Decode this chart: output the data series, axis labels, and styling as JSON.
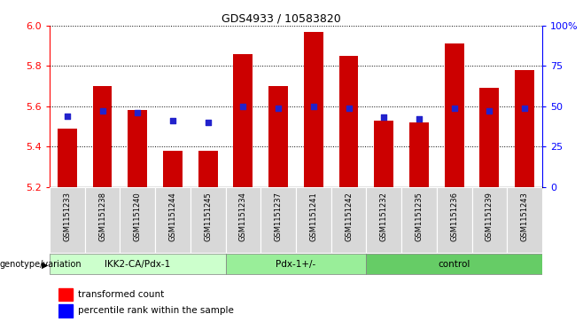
{
  "title": "GDS4933 / 10583820",
  "samples": [
    "GSM1151233",
    "GSM1151238",
    "GSM1151240",
    "GSM1151244",
    "GSM1151245",
    "GSM1151234",
    "GSM1151237",
    "GSM1151241",
    "GSM1151242",
    "GSM1151232",
    "GSM1151235",
    "GSM1151236",
    "GSM1151239",
    "GSM1151243"
  ],
  "bar_values": [
    5.49,
    5.7,
    5.58,
    5.38,
    5.38,
    5.86,
    5.7,
    5.97,
    5.85,
    5.53,
    5.52,
    5.91,
    5.69,
    5.78
  ],
  "percentile_values": [
    44,
    47,
    46,
    41,
    40,
    50,
    49,
    50,
    49,
    43,
    42,
    49,
    47,
    49
  ],
  "ymin": 5.2,
  "ymax": 6.0,
  "yticks": [
    5.2,
    5.4,
    5.6,
    5.8,
    6.0
  ],
  "right_yticks": [
    0,
    25,
    50,
    75,
    100
  ],
  "right_yticklabels": [
    "0",
    "25",
    "50",
    "75",
    "100%"
  ],
  "bar_color": "#cc0000",
  "percentile_color": "#2222cc",
  "bar_bottom": 5.2,
  "legend_bar_label": "transformed count",
  "legend_percentile_label": "percentile rank within the sample",
  "genotype_label": "genotype/variation",
  "groups": [
    {
      "label": "IKK2-CA/Pdx-1",
      "start": 0,
      "end": 5
    },
    {
      "label": "Pdx-1+/-",
      "start": 5,
      "end": 9
    },
    {
      "label": "control",
      "start": 9,
      "end": 14
    }
  ],
  "group_colors": [
    "#ccffcc",
    "#99ee99",
    "#66cc66"
  ],
  "bg_color": "#f0f0f0"
}
